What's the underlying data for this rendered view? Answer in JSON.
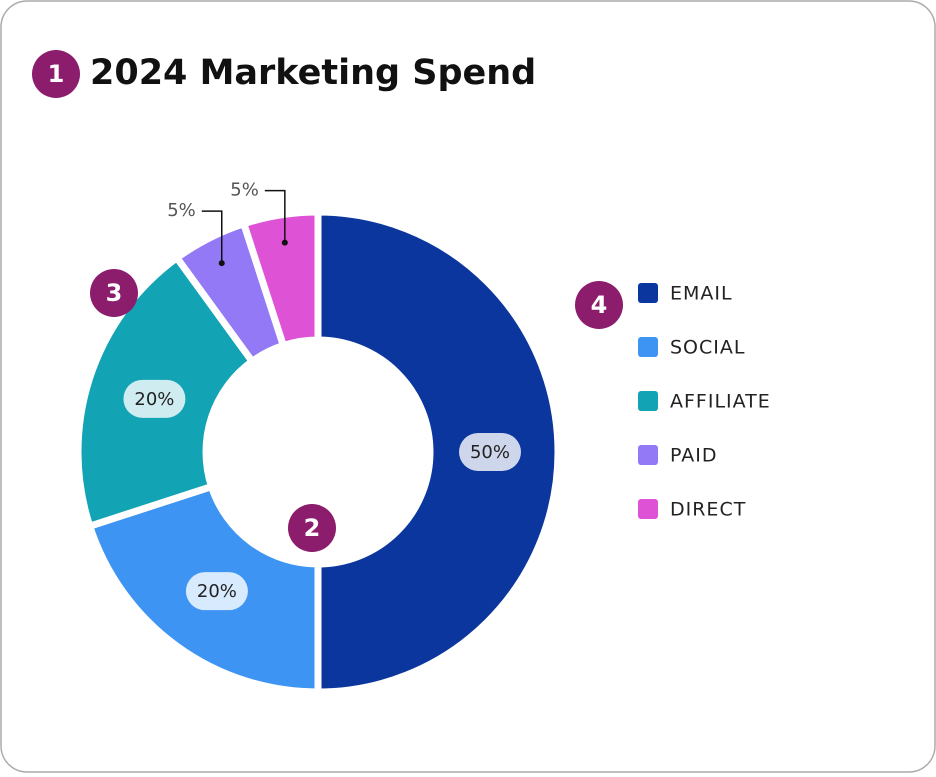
{
  "chart_data": {
    "type": "donut",
    "title": "2024 Marketing Spend",
    "categories": [
      "EMAIL",
      "SOCIAL",
      "AFFILIATE",
      "PAID",
      "DIRECT"
    ],
    "values": [
      50,
      20,
      20,
      5,
      5
    ],
    "value_labels": [
      "50%",
      "20%",
      "20%",
      "5%",
      "5%"
    ],
    "colors": [
      "#0a369d",
      "#3d94f2",
      "#12a3b5",
      "#9479f6",
      "#de52d6"
    ],
    "legend": "right",
    "markers": [
      "1",
      "2",
      "3",
      "4"
    ]
  }
}
